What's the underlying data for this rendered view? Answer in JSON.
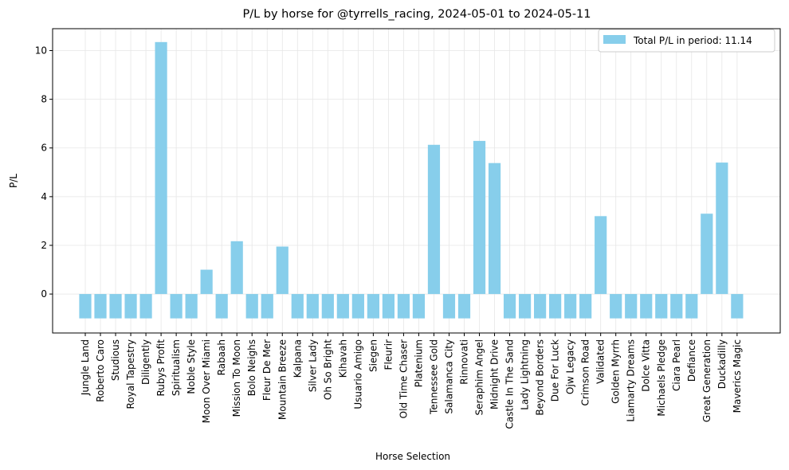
{
  "chart_data": {
    "type": "bar",
    "title": "P/L by horse for @tyrrells_racing, 2024-05-01 to 2024-05-11",
    "xlabel": "Horse Selection",
    "ylabel": "P/L",
    "ylim": [
      -1.6,
      10.9
    ],
    "yticks": [
      0,
      2,
      4,
      6,
      8,
      10
    ],
    "grid": true,
    "legend": {
      "label": "Total P/L in period: 11.14",
      "placement": "top-right"
    },
    "bar_color": "#87ceeb",
    "categories": [
      "Jungle Land",
      "Roberto Caro",
      "Studious",
      "Royal Tapestry",
      "Diligently",
      "Rubys Profit",
      "Spiritualism",
      "Noble Style",
      "Moon Over Miami",
      "Rabaah",
      "Mission To Moon",
      "Bolo Neighs",
      "Fleur De Mer",
      "Mountain Breeze",
      "Kalpana",
      "Silver Lady",
      "Oh So Bright",
      "Kihavah",
      "Usuario Amigo",
      "Siegen",
      "Fleurir",
      "Old Time Chaser",
      "Platenium",
      "Tennessee Gold",
      "Salamanca City",
      "Rinnovati",
      "Seraphim Angel",
      "Midnight Drive",
      "Castle In The Sand",
      "Lady Lightning",
      "Beyond Borders",
      "Due For Luck",
      "Ojw Legacy",
      "Crimson Road",
      "Validated",
      "Golden Myrrh",
      "Liamarty Dreams",
      "Dolce Vitta",
      "Michaels Pledge",
      "Ciara Pearl",
      "Defiance",
      "Great Generation",
      "Duckadilly",
      "Maverics Magic"
    ],
    "values": [
      -1,
      -1,
      -1,
      -1,
      -1,
      10.35,
      -1,
      -1,
      1.0,
      -1,
      2.17,
      -1,
      -1,
      1.95,
      -1,
      -1,
      -1,
      -1,
      -1,
      -1,
      -1,
      -1,
      -1,
      6.13,
      -1,
      -1,
      6.29,
      5.38,
      -1,
      -1,
      -1,
      -1,
      -1,
      -1,
      3.2,
      -1,
      -1,
      -1,
      -1,
      -1,
      -1,
      3.3,
      5.4,
      -1
    ]
  }
}
